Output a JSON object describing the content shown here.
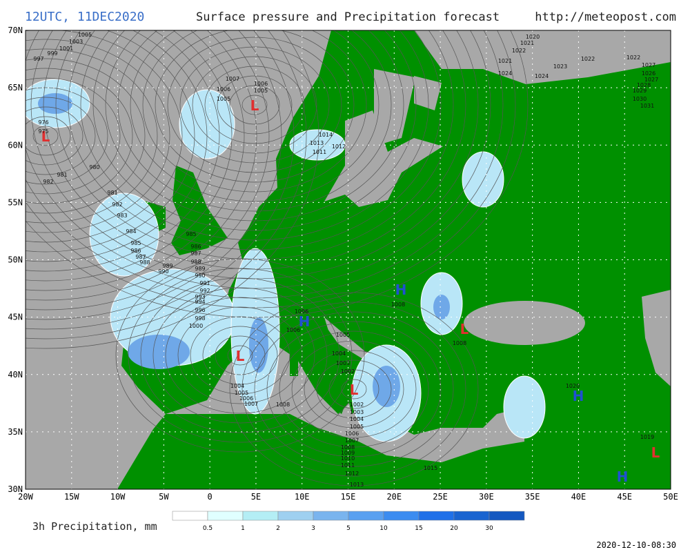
{
  "header": {
    "title_time": "12UTC, 11DEC2020",
    "title_text": "Surface pressure and Precipitation forecast",
    "url": "http://meteopost.com"
  },
  "map": {
    "lat_labels": [
      "70N",
      "65N",
      "60N",
      "55N",
      "50N",
      "45N",
      "40N",
      "35N",
      "30N"
    ],
    "lon_labels": [
      "20W",
      "15W",
      "10W",
      "5W",
      "0",
      "5E",
      "10E",
      "15E",
      "20E",
      "25E",
      "30E",
      "35E",
      "40E",
      "45E",
      "50E"
    ],
    "pressure_centers": [
      "L",
      "L",
      "L",
      "L",
      "L",
      "L",
      "H",
      "H",
      "H",
      "H"
    ],
    "isobar_labels": [
      "1005",
      "1003",
      "1001",
      "999",
      "997",
      "1007",
      "1006",
      "1005",
      "1006",
      "1005",
      "976",
      "975",
      "980",
      "981",
      "982",
      "981",
      "982",
      "983",
      "984",
      "985",
      "985",
      "986",
      "986",
      "987",
      "987",
      "988",
      "988",
      "989",
      "989",
      "990",
      "990",
      "991",
      "992",
      "993",
      "994",
      "996",
      "998",
      "1000",
      "1004",
      "1005",
      "1006",
      "1007",
      "1008",
      "1006",
      "1006",
      "1005",
      "1004",
      "1003",
      "1002",
      "1002",
      "1003",
      "1004",
      "1005",
      "1006",
      "1007",
      "1008",
      "1009",
      "1010",
      "1011",
      "1012",
      "1013",
      "1008",
      "1008",
      "1015",
      "1020",
      "1019",
      "1014",
      "1013",
      "1011",
      "1012",
      "1020",
      "1021",
      "1022",
      "1021",
      "1023",
      "1022",
      "1024",
      "1024",
      "1022",
      "1027",
      "1026",
      "1027",
      "1028",
      "1029",
      "1030",
      "1031"
    ]
  },
  "legend": {
    "title": "3h Precipitation, mm",
    "scale": [
      "0.5",
      "1",
      "2",
      "3",
      "5",
      "10",
      "15",
      "20",
      "30"
    ]
  },
  "footer": {
    "timestamp": "2020-12-10-08:30"
  }
}
